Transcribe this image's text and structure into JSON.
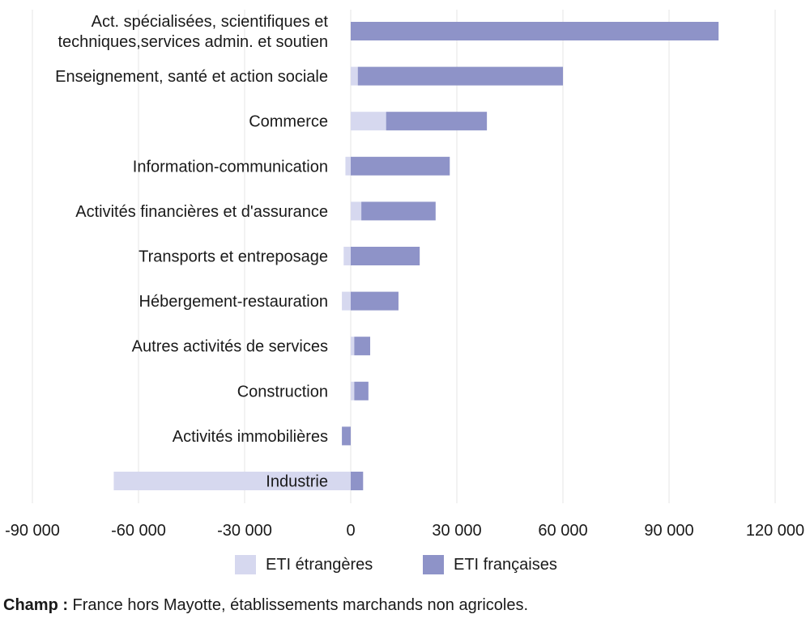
{
  "chart_data": {
    "type": "bar",
    "orientation": "horizontal",
    "stacked": true,
    "categories": [
      [
        "Act. spécialisées, scientifiques et",
        "techniques,services admin. et soutien"
      ],
      [
        "Enseignement, santé et action sociale"
      ],
      [
        "Commerce"
      ],
      [
        "Information-communication"
      ],
      [
        "Activités financières et d'assurance"
      ],
      [
        "Transports et entreposage"
      ],
      [
        "Hébergement-restauration"
      ],
      [
        "Autres activités de services"
      ],
      [
        "Construction"
      ],
      [
        "Activités immobilières"
      ],
      [
        "Industrie"
      ]
    ],
    "series": [
      {
        "name": "ETI étrangères",
        "color": "#d6d8ef",
        "values": [
          0,
          2000,
          10000,
          -1500,
          3000,
          -2000,
          -2500,
          1000,
          1000,
          0,
          -67000
        ]
      },
      {
        "name": "ETI françaises",
        "color": "#8e93c8",
        "values": [
          104000,
          58000,
          28500,
          28000,
          21000,
          19500,
          13500,
          4500,
          4000,
          -2500,
          3500
        ]
      }
    ],
    "xlim": [
      -90000,
      120000
    ],
    "xticks": [
      -90000,
      -60000,
      -30000,
      0,
      30000,
      60000,
      90000,
      120000
    ],
    "xtick_labels": [
      "-90 000",
      "-60 000",
      "-30 000",
      "0",
      "30 000",
      "60 000",
      "90 000",
      "120 000"
    ],
    "grid": "vertical",
    "legend_position": "bottom-center"
  },
  "note": {
    "label": "Champ :",
    "text": " France hors Mayotte, établissements marchands non agricoles."
  }
}
